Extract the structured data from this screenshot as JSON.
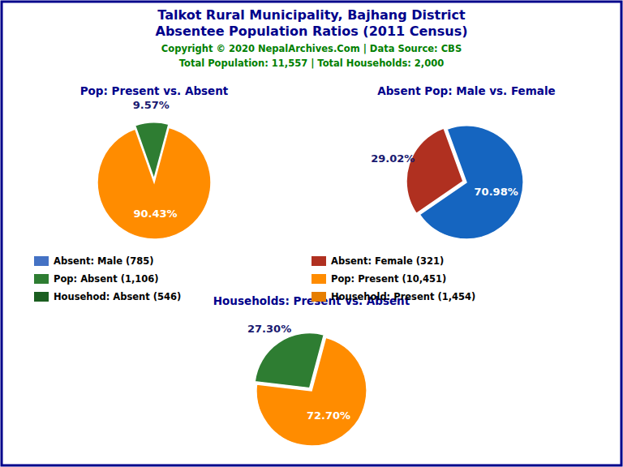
{
  "title": "Talkot Rural Municipality, Bajhang District",
  "subtitle": "Absentee Population Ratios (2011 Census)",
  "annotations": [
    "Copyright © 2020 NepalArchives.Com | Data Source: CBS",
    "Total Population: 11,557 | Total Households: 2,000"
  ],
  "series": [
    {
      "name": "Absent: Male (785)",
      "color": "#4472C4"
    },
    {
      "name": "Absent: Female (321)",
      "color": "#B03020"
    },
    {
      "name": "Pop: Absent (1,106)",
      "color": "#2E7D32"
    },
    {
      "name": "Pop: Present (10,451)",
      "color": "#FF8C00"
    },
    {
      "name": "Househod: Absent (546)",
      "color": "#1B5E20"
    },
    {
      "name": "Household: Present (1,454)",
      "color": "#E67E00"
    }
  ],
  "chart_data": [
    {
      "type": "pie",
      "title": "Pop: Present vs. Absent",
      "values": [
        90.43,
        9.57
      ],
      "value_labels": [
        "90.43%",
        "9.57%"
      ],
      "colors": [
        "#FF8C00",
        "#2E7D32"
      ],
      "data_labels": true
    },
    {
      "type": "pie",
      "title": "Absent Pop: Male vs. Female",
      "values": [
        70.98,
        29.02
      ],
      "value_labels": [
        "70.98%",
        "29.02%"
      ],
      "colors": [
        "#1565C0",
        "#B03020"
      ],
      "data_labels": true
    },
    {
      "type": "pie",
      "title": "Households: Present vs. Absent",
      "values": [
        72.7,
        27.3
      ],
      "value_labels": [
        "72.70%",
        "27.30%"
      ],
      "colors": [
        "#FF8C00",
        "#2E7D32"
      ],
      "data_labels": true
    }
  ]
}
